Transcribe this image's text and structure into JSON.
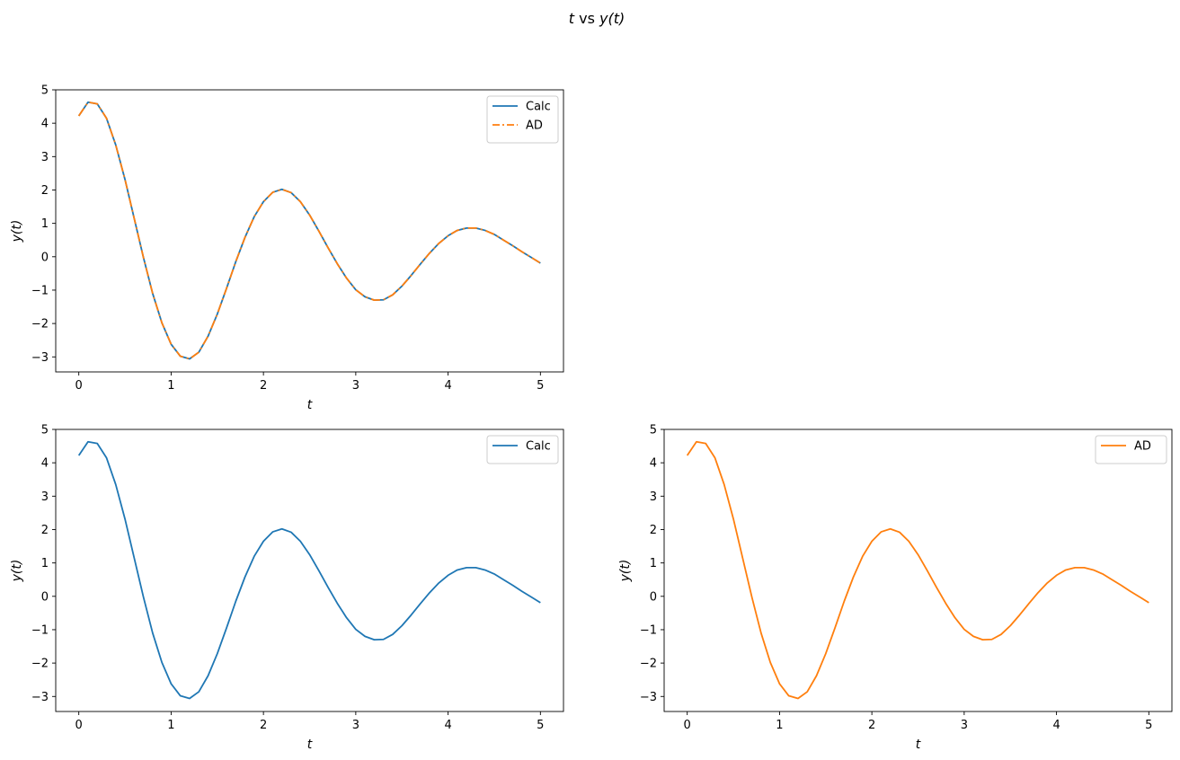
{
  "chart_data": {
    "title_parts": [
      "t",
      " vs ",
      "y(t)"
    ],
    "title": "t vs y(t)",
    "colors": {
      "calc": "#1f77b4",
      "ad": "#ff7f0e"
    },
    "x": [
      0.0,
      0.1,
      0.2,
      0.3,
      0.4,
      0.5,
      0.6,
      0.7,
      0.8,
      0.9,
      1.0,
      1.1,
      1.2,
      1.3,
      1.4,
      1.5,
      1.6,
      1.7,
      1.8,
      1.9,
      2.0,
      2.1,
      2.2,
      2.3,
      2.4,
      2.5,
      2.6,
      2.7,
      2.8,
      2.9,
      3.0,
      3.1,
      3.2,
      3.3,
      3.4,
      3.5,
      3.6,
      3.7,
      3.8,
      3.9,
      4.0,
      4.1,
      4.2,
      4.3,
      4.4,
      4.5,
      4.6,
      4.7,
      4.8,
      4.9,
      5.0
    ],
    "y": [
      4.22,
      4.63,
      4.58,
      4.15,
      3.35,
      2.32,
      1.15,
      -0.02,
      -1.1,
      -1.98,
      -2.62,
      -2.98,
      -3.06,
      -2.86,
      -2.38,
      -1.72,
      -0.95,
      -0.15,
      0.58,
      1.2,
      1.65,
      1.93,
      2.02,
      1.92,
      1.65,
      1.25,
      0.77,
      0.27,
      -0.21,
      -0.64,
      -0.99,
      -1.2,
      -1.3,
      -1.29,
      -1.14,
      -0.88,
      -0.56,
      -0.22,
      0.11,
      0.4,
      0.63,
      0.79,
      0.86,
      0.86,
      0.79,
      0.67,
      0.5,
      0.33,
      0.15,
      -0.02,
      -0.19
    ],
    "panels": [
      {
        "type": "line",
        "position": "top-left",
        "xlabel": "t",
        "ylabel": "y(t)",
        "xlim": [
          -0.25,
          5.25
        ],
        "ylim": [
          -3.45,
          5.0
        ],
        "xticks": [
          0,
          1,
          2,
          3,
          4,
          5
        ],
        "yticks": [
          -3,
          -2,
          -1,
          0,
          1,
          2,
          3,
          4,
          5
        ],
        "legend_placement": "top-right",
        "series": [
          {
            "name": "Calc",
            "color": "#1f77b4",
            "style": "solid"
          },
          {
            "name": "AD",
            "color": "#ff7f0e",
            "style": "dashdot"
          }
        ]
      },
      {
        "type": "line",
        "position": "bottom-left",
        "xlabel": "t",
        "ylabel": "y(t)",
        "xlim": [
          -0.25,
          5.25
        ],
        "ylim": [
          -3.45,
          5.0
        ],
        "xticks": [
          0,
          1,
          2,
          3,
          4,
          5
        ],
        "yticks": [
          -3,
          -2,
          -1,
          0,
          1,
          2,
          3,
          4,
          5
        ],
        "legend_placement": "top-right",
        "series": [
          {
            "name": "Calc",
            "color": "#1f77b4",
            "style": "solid"
          }
        ]
      },
      {
        "type": "line",
        "position": "bottom-right",
        "xlabel": "t",
        "ylabel": "y(t)",
        "xlim": [
          -0.25,
          5.25
        ],
        "ylim": [
          -3.45,
          5.0
        ],
        "xticks": [
          0,
          1,
          2,
          3,
          4,
          5
        ],
        "yticks": [
          -3,
          -2,
          -1,
          0,
          1,
          2,
          3,
          4,
          5
        ],
        "legend_placement": "top-right",
        "series": [
          {
            "name": "AD",
            "color": "#ff7f0e",
            "style": "solid"
          }
        ]
      }
    ]
  }
}
